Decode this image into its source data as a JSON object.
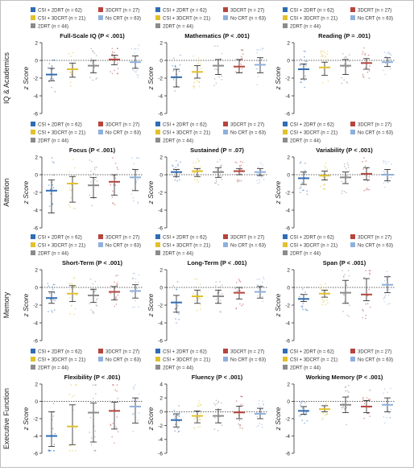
{
  "legend": [
    {
      "label": "CSI + 2DRT (n = 62)",
      "color": "#2f6db5"
    },
    {
      "label": "3DCRT (n = 27)",
      "color": "#b7443d"
    },
    {
      "label": "CSI + 3DCRT (n = 21)",
      "color": "#e2c12a"
    },
    {
      "label": "No CRT (n = 63)",
      "color": "#8fb0dc"
    },
    {
      "label": "2DRT (n = 44)",
      "color": "#8b8b8b"
    }
  ],
  "group_order": [
    "CSI + 2DRT (n = 62)",
    "CSI + 3DCRT (n = 21)",
    "2DRT (n = 44)",
    "3DCRT (n = 27)",
    "No CRT (n = 63)"
  ],
  "y_axis_label": "z Score",
  "rows": [
    {
      "label": "IQ & Academics",
      "panels": [
        0,
        1,
        2
      ]
    },
    {
      "label": "Attention",
      "panels": [
        3,
        4,
        5
      ]
    },
    {
      "label": "Memory",
      "panels": [
        6,
        7,
        8
      ]
    },
    {
      "label": "Executive Function",
      "panels": [
        9,
        10,
        11
      ]
    }
  ],
  "chart_data": [
    {
      "type": "scatter",
      "title": "Full-Scale IQ (P < .001)",
      "ylim": [
        -6,
        2
      ],
      "yticks": [
        2,
        0,
        -2,
        -4,
        -6
      ],
      "series": [
        {
          "mean": -1.6,
          "lower": -2.3,
          "upper": -0.9
        },
        {
          "mean": -1.0,
          "lower": -1.9,
          "upper": -0.3
        },
        {
          "mean": -0.6,
          "lower": -1.4,
          "upper": 0.0
        },
        {
          "mean": 0.1,
          "lower": -0.5,
          "upper": 0.6
        },
        {
          "mean": -0.2,
          "lower": -0.9,
          "upper": 0.5
        }
      ]
    },
    {
      "type": "scatter",
      "title": "Mathematics (P < .001)",
      "ylim": [
        -6,
        2
      ],
      "yticks": [
        2,
        0,
        -2,
        -4,
        -6
      ],
      "series": [
        {
          "mean": -1.9,
          "lower": -3.0,
          "upper": -1.0
        },
        {
          "mean": -1.3,
          "lower": -2.0,
          "upper": -0.6
        },
        {
          "mean": -0.6,
          "lower": -1.6,
          "upper": 0.1
        },
        {
          "mean": -0.7,
          "lower": -1.4,
          "upper": 0.1
        },
        {
          "mean": -0.5,
          "lower": -1.4,
          "upper": 0.3
        }
      ]
    },
    {
      "type": "scatter",
      "title": "Reading (P = .001)",
      "ylim": [
        -6,
        2
      ],
      "yticks": [
        2,
        0,
        -2,
        -4,
        -6
      ],
      "series": [
        {
          "mean": -1.0,
          "lower": -2.1,
          "upper": -0.4
        },
        {
          "mean": -0.8,
          "lower": -1.7,
          "upper": -0.2
        },
        {
          "mean": -0.6,
          "lower": -1.6,
          "upper": 0.1
        },
        {
          "mean": -0.3,
          "lower": -1.0,
          "upper": 0.2
        },
        {
          "mean": -0.2,
          "lower": -0.7,
          "upper": 0.3
        }
      ]
    },
    {
      "type": "scatter",
      "title": "Focus (P < .001)",
      "ylim": [
        -6,
        2
      ],
      "yticks": [
        2,
        0,
        -2,
        -4,
        -6
      ],
      "series": [
        {
          "mean": -1.8,
          "lower": -4.3,
          "upper": -0.6
        },
        {
          "mean": -1.0,
          "lower": -3.1,
          "upper": -0.2
        },
        {
          "mean": -1.2,
          "lower": -2.6,
          "upper": -0.3
        },
        {
          "mean": -0.8,
          "lower": -2.3,
          "upper": 0.0
        },
        {
          "mean": -0.3,
          "lower": -1.8,
          "upper": 0.6
        }
      ]
    },
    {
      "type": "scatter",
      "title": "Sustained (P = .07)",
      "ylim": [
        -6,
        2
      ],
      "yticks": [
        2,
        0,
        -2,
        -4,
        -6
      ],
      "series": [
        {
          "mean": 0.3,
          "lower": -0.2,
          "upper": 0.6
        },
        {
          "mean": 0.4,
          "lower": -0.2,
          "upper": 0.7
        },
        {
          "mean": 0.3,
          "lower": -0.3,
          "upper": 0.8
        },
        {
          "mean": 0.4,
          "lower": 0.0,
          "upper": 0.7
        },
        {
          "mean": 0.3,
          "lower": -0.1,
          "upper": 0.7
        }
      ]
    },
    {
      "type": "scatter",
      "title": "Variability (P < .001)",
      "ylim": [
        -6,
        2
      ],
      "yticks": [
        2,
        0,
        -2,
        -4,
        -6
      ],
      "series": [
        {
          "mean": -0.4,
          "lower": -1.1,
          "upper": 0.3
        },
        {
          "mean": -0.1,
          "lower": -0.6,
          "upper": 0.4
        },
        {
          "mean": -0.3,
          "lower": -1.0,
          "upper": 0.3
        },
        {
          "mean": 0.1,
          "lower": -0.6,
          "upper": 0.8
        },
        {
          "mean": 0.0,
          "lower": -0.7,
          "upper": 0.6
        }
      ]
    },
    {
      "type": "scatter",
      "title": "Short-Term (P < .001)",
      "ylim": [
        -6,
        2
      ],
      "yticks": [
        2,
        0,
        -2,
        -4,
        -6
      ],
      "series": [
        {
          "mean": -1.2,
          "lower": -1.8,
          "upper": -0.5
        },
        {
          "mean": -0.7,
          "lower": -1.6,
          "upper": 0.2
        },
        {
          "mean": -0.9,
          "lower": -1.7,
          "upper": -0.2
        },
        {
          "mean": -0.5,
          "lower": -1.4,
          "upper": 0.1
        },
        {
          "mean": -0.4,
          "lower": -1.2,
          "upper": 0.3
        }
      ]
    },
    {
      "type": "scatter",
      "title": "Long-Term (P < .001)",
      "ylim": [
        -6,
        2
      ],
      "yticks": [
        2,
        0,
        -2,
        -4,
        -6
      ],
      "series": [
        {
          "mean": -1.7,
          "lower": -2.8,
          "upper": -0.9
        },
        {
          "mean": -1.0,
          "lower": -1.8,
          "upper": -0.3
        },
        {
          "mean": -1.0,
          "lower": -1.8,
          "upper": -0.3
        },
        {
          "mean": -0.6,
          "lower": -1.3,
          "upper": 0.0
        },
        {
          "mean": -0.5,
          "lower": -1.2,
          "upper": 0.1
        }
      ]
    },
    {
      "type": "scatter",
      "title": "Span (P < .001)",
      "ylim": [
        -6,
        2
      ],
      "yticks": [
        2,
        0,
        -2,
        -4,
        -6
      ],
      "series": [
        {
          "mean": -1.3,
          "lower": -1.6,
          "upper": -0.8
        },
        {
          "mean": -0.7,
          "lower": -1.1,
          "upper": -0.3
        },
        {
          "mean": -0.6,
          "lower": -1.8,
          "upper": 0.8
        },
        {
          "mean": -0.8,
          "lower": -1.5,
          "upper": 1.0
        },
        {
          "mean": 0.3,
          "lower": -0.6,
          "upper": 1.2
        }
      ]
    },
    {
      "type": "scatter",
      "title": "Flexibility (P < .001)",
      "ylim": [
        -6,
        2
      ],
      "yticks": [
        2,
        0,
        -2,
        -4,
        -6
      ],
      "series": [
        {
          "mean": -4.0,
          "lower": -5.2,
          "upper": -1.2
        },
        {
          "mean": -2.9,
          "lower": -5.0,
          "upper": -0.4
        },
        {
          "mean": -1.3,
          "lower": -4.7,
          "upper": -0.2
        },
        {
          "mean": -1.1,
          "lower": -3.2,
          "upper": -0.1
        },
        {
          "mean": -0.6,
          "lower": -2.5,
          "upper": 0.4
        }
      ]
    },
    {
      "type": "scatter",
      "title": "Fluency (P < .001)",
      "ylim": [
        -6,
        4
      ],
      "yticks": [
        4,
        2,
        0,
        -2,
        -4,
        -6
      ],
      "series": [
        {
          "mean": -1.2,
          "lower": -2.2,
          "upper": -0.3
        },
        {
          "mean": -0.6,
          "lower": -1.6,
          "upper": 0.1
        },
        {
          "mean": -0.6,
          "lower": -1.6,
          "upper": 0.3
        },
        {
          "mean": -0.1,
          "lower": -1.0,
          "upper": 0.8
        },
        {
          "mean": -0.3,
          "lower": -1.0,
          "upper": 0.5
        }
      ]
    },
    {
      "type": "scatter",
      "title": "Working Memory (P < .001)",
      "ylim": [
        -6,
        2
      ],
      "yticks": [
        2,
        0,
        -2,
        -4,
        -6
      ],
      "series": [
        {
          "mean": -1.1,
          "lower": -1.5,
          "upper": -0.6
        },
        {
          "mean": -0.9,
          "lower": -1.2,
          "upper": -0.5
        },
        {
          "mean": -0.4,
          "lower": -1.3,
          "upper": 0.5
        },
        {
          "mean": -0.6,
          "lower": -1.3,
          "upper": 0.1
        },
        {
          "mean": -0.4,
          "lower": -1.2,
          "upper": 0.4
        }
      ]
    }
  ]
}
